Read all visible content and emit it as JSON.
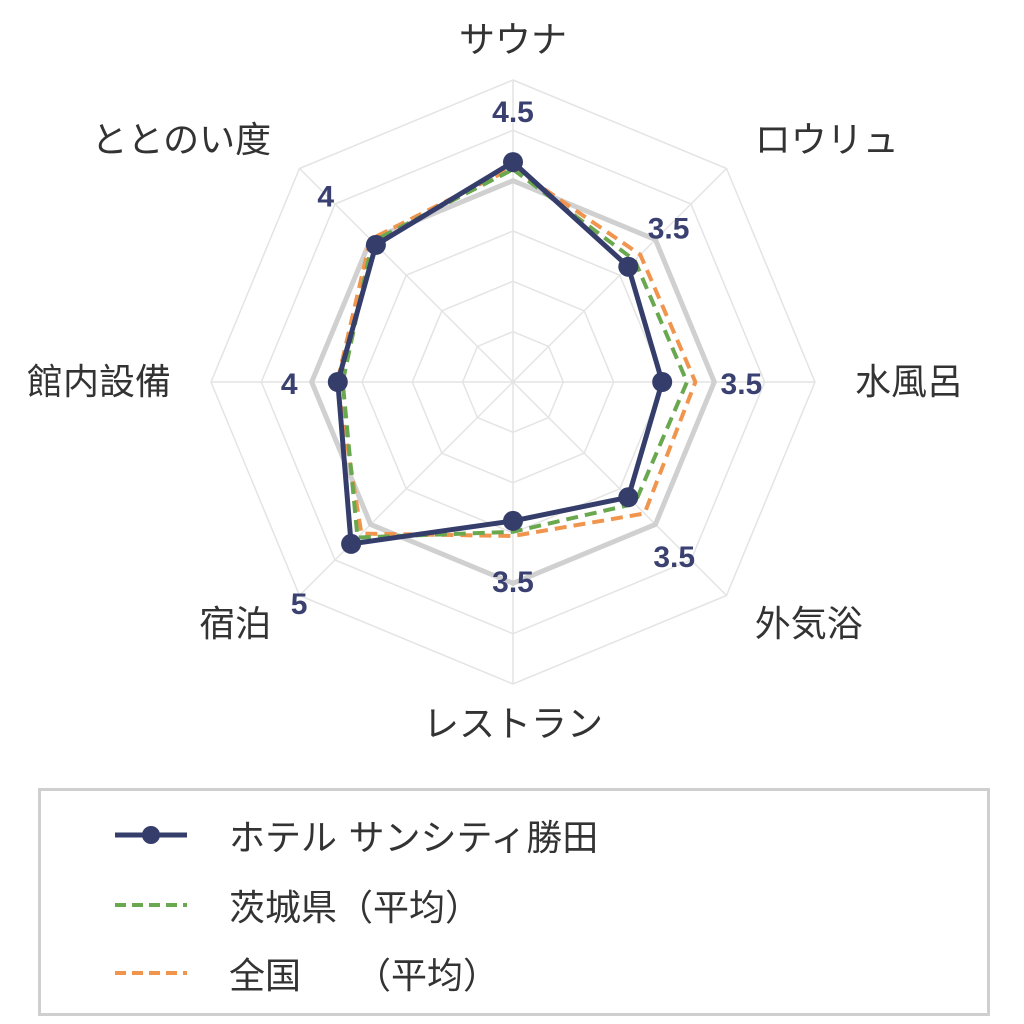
{
  "chart_data": {
    "type": "radar",
    "axes": [
      "サウナ",
      "ロウリュ",
      "水風呂",
      "外気浴",
      "レストラン",
      "宿泊",
      "館内設備",
      "ととのい度"
    ],
    "value_labels": [
      "4.5",
      "3.5",
      "3.5",
      "3.5",
      "3.5",
      "5",
      "4",
      "4"
    ],
    "rlim": [
      0,
      5
    ],
    "grid_levels": 6,
    "series": [
      {
        "name": "ホテル サンシティ勝田",
        "values": [
          3.64,
          2.7,
          2.47,
          2.7,
          2.3,
          3.79,
          2.9,
          3.21
        ],
        "color": "#353d6b",
        "style": "solid-marker"
      },
      {
        "name": "茨城県（平均）",
        "values": [
          3.52,
          2.85,
          2.88,
          2.85,
          2.48,
          3.64,
          2.82,
          3.29
        ],
        "color": "#6aa84f",
        "style": "dashed"
      },
      {
        "name": "全国　　（平均）",
        "values": [
          3.55,
          2.98,
          3.02,
          3.08,
          2.55,
          3.55,
          2.91,
          3.34
        ],
        "color": "#f0954e",
        "style": "dashed"
      }
    ],
    "legend_position": "bottom"
  },
  "colors": {
    "outer_ring": "#d0d0d0",
    "grid": "#e4e4e4"
  }
}
